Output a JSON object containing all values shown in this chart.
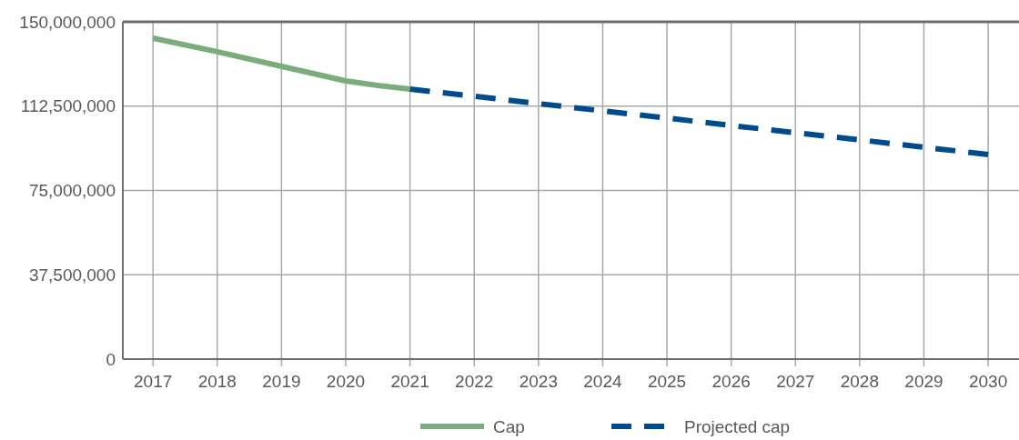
{
  "chart_data": {
    "type": "line",
    "xlim": [
      2016.53,
      2030.48
    ],
    "xticks": [
      2017,
      2018,
      2019,
      2020,
      2021,
      2022,
      2023,
      2024,
      2025,
      2026,
      2027,
      2028,
      2029,
      2030
    ],
    "ylim": [
      0,
      150000000
    ],
    "yticks": [
      {
        "value": 0,
        "label": "0"
      },
      {
        "value": 37500000,
        "label": "37,500,000"
      },
      {
        "value": 75000000,
        "label": "75,000,000"
      },
      {
        "value": 112500000,
        "label": "112,500,000"
      },
      {
        "value": 150000000,
        "label": "150,000,000"
      }
    ],
    "grid": true,
    "legend": "bottom",
    "series": [
      {
        "name": "Cap",
        "color": "#7aad7b",
        "line_style": "solid",
        "x": [
          2017,
          2018,
          2019,
          2020,
          2020.5,
          2021
        ],
        "values": [
          142700000,
          136700000,
          130200000,
          123700000,
          121700000,
          120100000
        ]
      },
      {
        "name": "Projected cap",
        "color": "#004b8d",
        "line_style": "dashed",
        "x": [
          2021,
          2022,
          2023,
          2024,
          2025,
          2026,
          2027,
          2028,
          2029,
          2030
        ],
        "values": [
          120100000,
          116900000,
          113600000,
          110400000,
          107200000,
          103900000,
          100700000,
          97500000,
          94200000,
          91000000
        ]
      }
    ]
  }
}
